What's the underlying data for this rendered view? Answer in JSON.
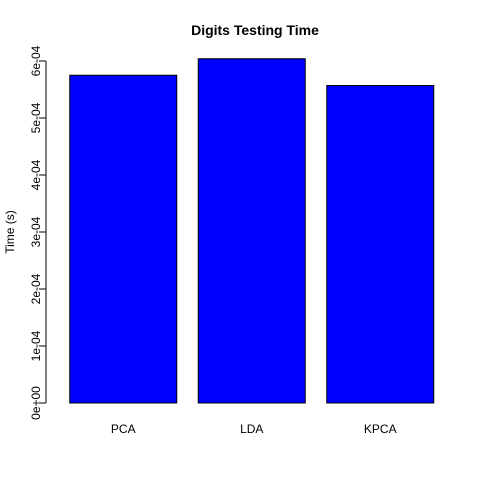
{
  "chart_data": {
    "type": "bar",
    "title": "Digits Testing Time",
    "xlabel": "",
    "ylabel": "Time (s)",
    "categories": [
      "PCA",
      "LDA",
      "KPCA"
    ],
    "values": [
      0.000575,
      0.000604,
      0.000557
    ],
    "ylim": [
      0,
      0.0006
    ],
    "yticks": [
      0,
      0.0001,
      0.0002,
      0.0003,
      0.0004,
      0.0005,
      0.0006
    ],
    "ytick_labels": [
      "0e+00",
      "1e-04",
      "2e-04",
      "3e-04",
      "4e-04",
      "5e-04",
      "6e-04"
    ],
    "bar_color": "#0000ff",
    "bar_border_color": "#000000",
    "grid": false,
    "legend": false
  }
}
